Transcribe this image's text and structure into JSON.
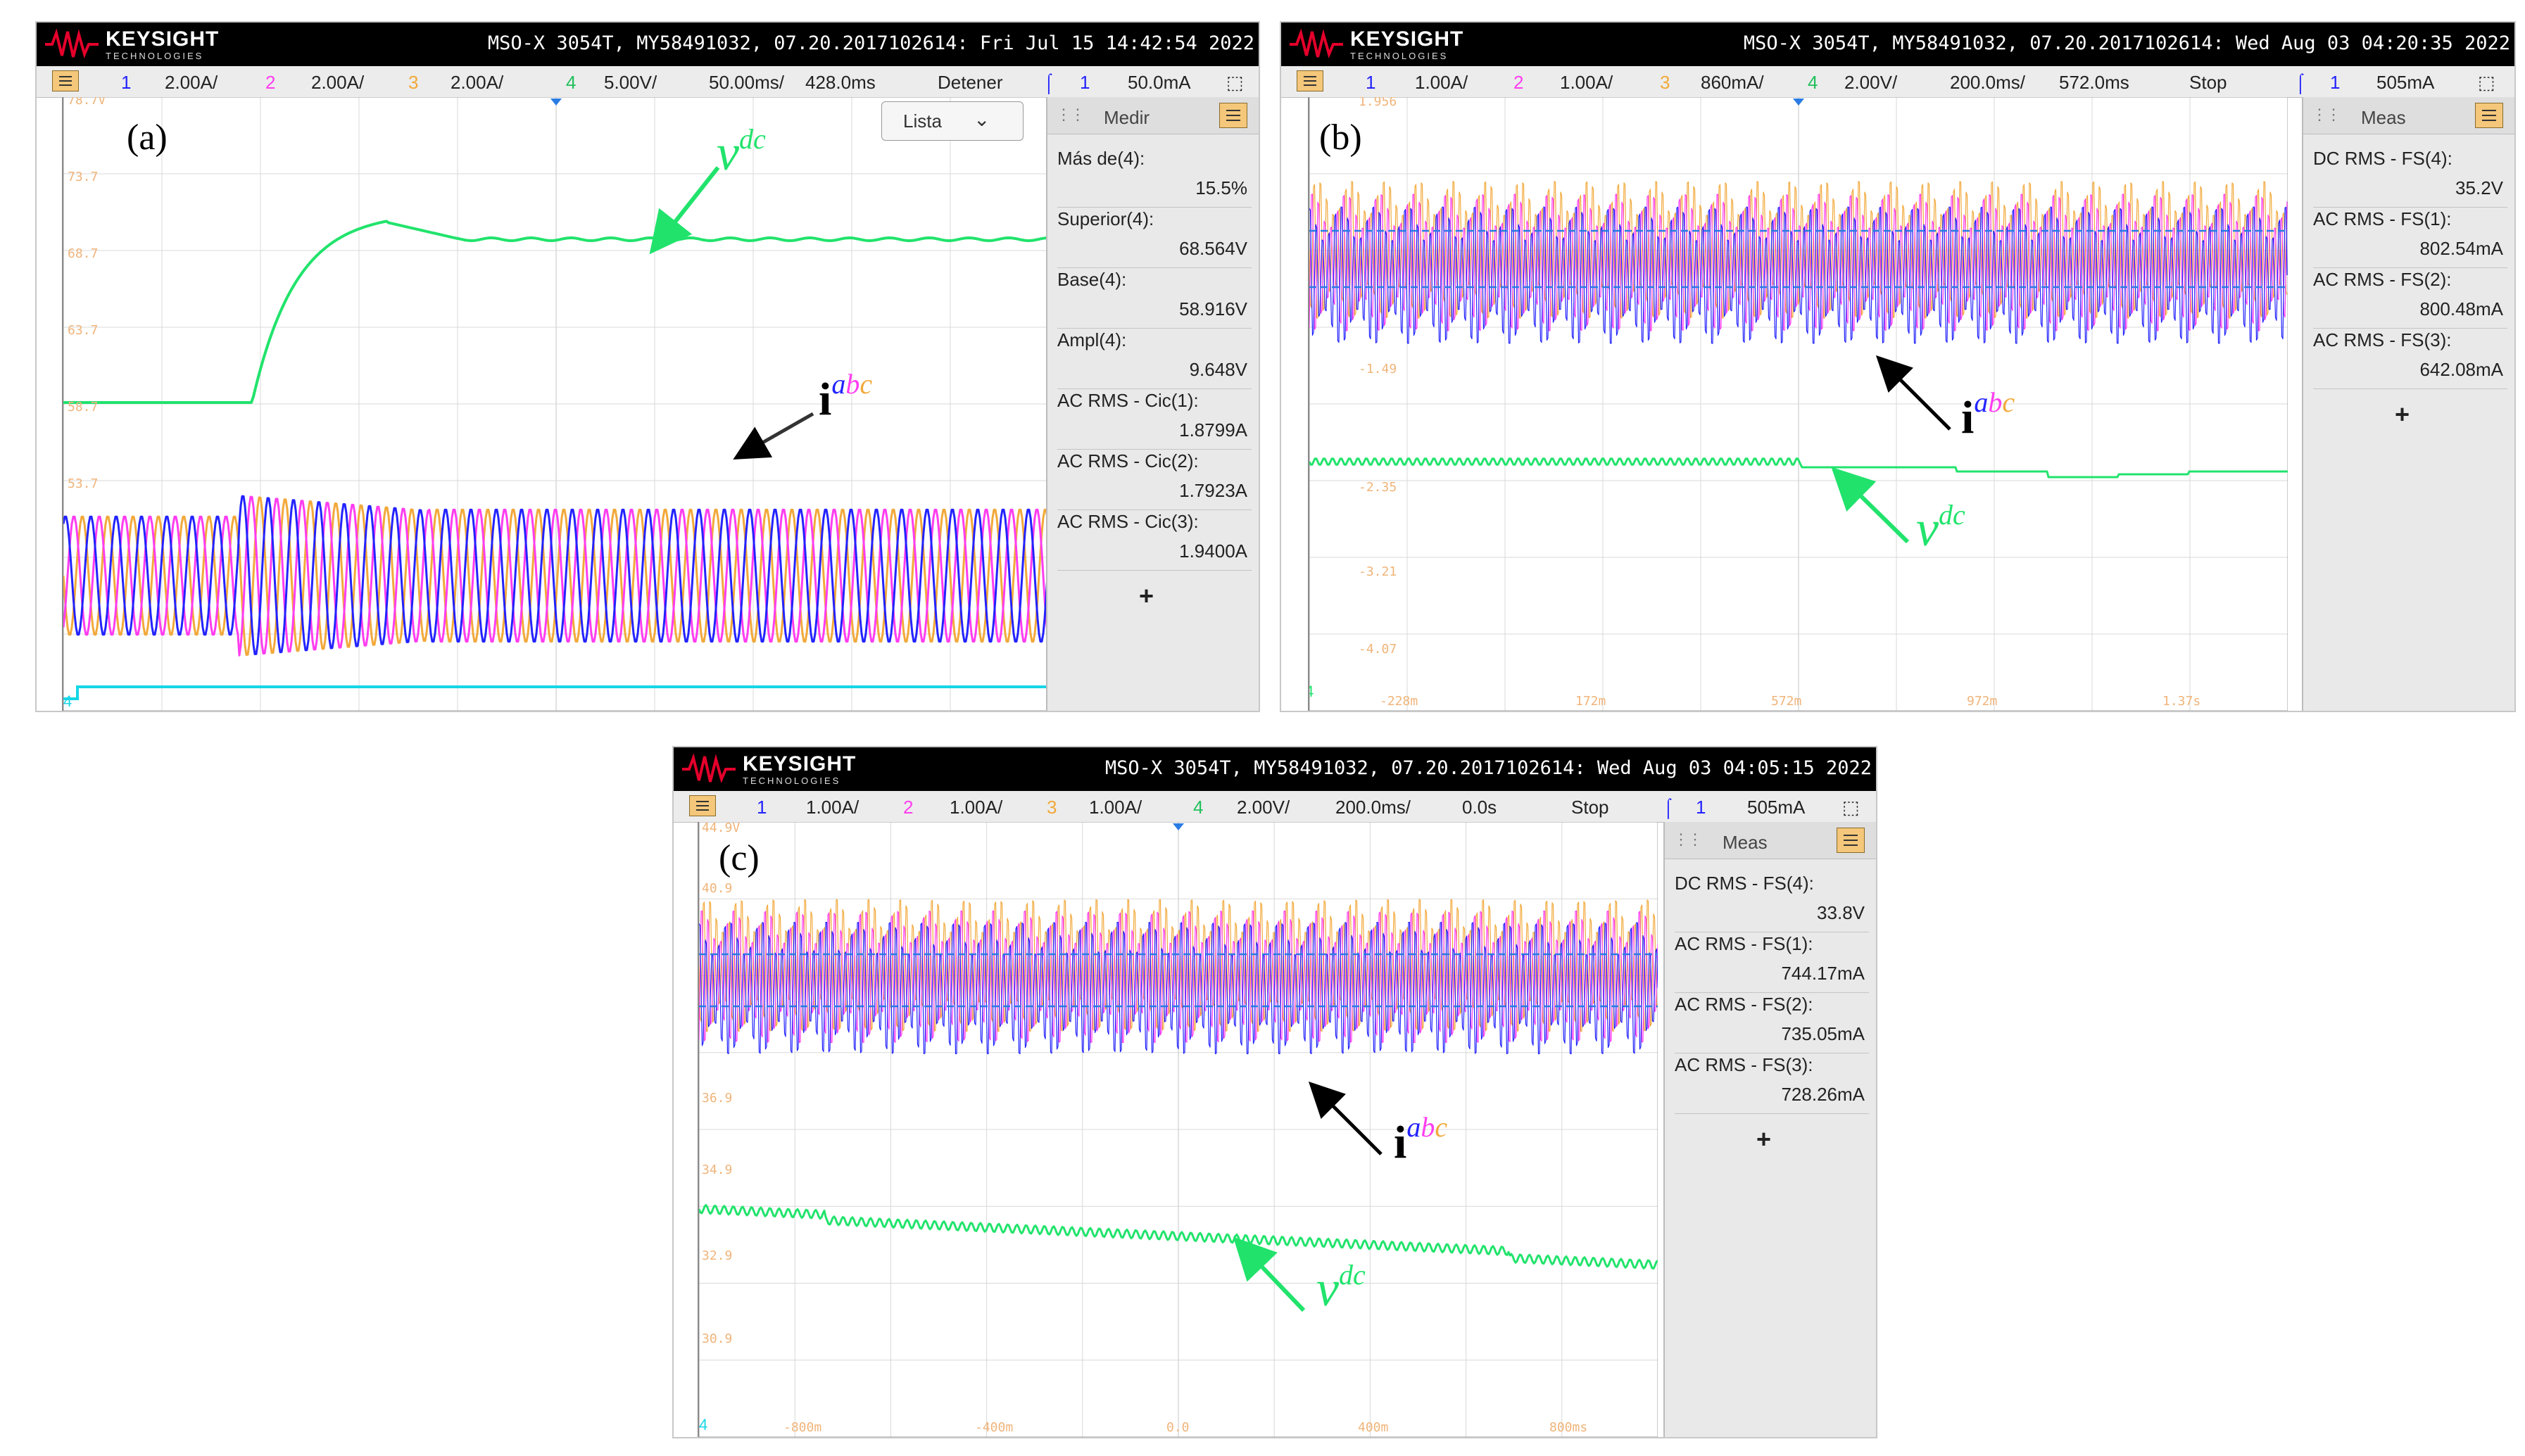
{
  "colors": {
    "ch1": "#2323ff",
    "ch2": "#ff3df0",
    "ch3": "#f2a93b",
    "ch4": "#21e36c",
    "trace_cyan": "#16d6e6",
    "header_bg": "#000000",
    "menu_btn": "#f4c77a"
  },
  "logo": {
    "main": "KEYSIGHT",
    "sub": "TECHNOLOGIES"
  },
  "panel_a": {
    "label": "(a)",
    "header_info": "MSO-X 3054T, MY58491032, 07.20.2017102614: Fri Jul 15 14:42:54 2022",
    "channels": [
      {
        "num": "1",
        "scale": "2.00A/"
      },
      {
        "num": "2",
        "scale": "2.00A/"
      },
      {
        "num": "3",
        "scale": "2.00A/"
      },
      {
        "num": "4",
        "scale": "5.00V/"
      }
    ],
    "timebase": "50.00ms/",
    "delay": "428.0ms",
    "run_state": "Detener",
    "trig_ch": "1",
    "trig_level": "50.0mA",
    "lista": "Lista",
    "meas_title": "Medir",
    "measurements": [
      {
        "name": "Más de(4):",
        "value": "15.5%"
      },
      {
        "name": "Superior(4):",
        "value": "68.564V"
      },
      {
        "name": "Base(4):",
        "value": "58.916V"
      },
      {
        "name": "Ampl(4):",
        "value": "9.648V"
      },
      {
        "name": "AC RMS - Cic(1):",
        "value": "1.8799A"
      },
      {
        "name": "AC RMS - Cic(2):",
        "value": "1.7923A"
      },
      {
        "name": "AC RMS - Cic(3):",
        "value": "1.9400A"
      }
    ],
    "add": "+",
    "vdc_label": "v",
    "vdc_sup": "dc",
    "iabc_label": "i",
    "iabc_sup": "abc",
    "y_ticks": [
      "78.7V",
      "73.7",
      "68.7",
      "63.7",
      "58.7",
      "53.7"
    ],
    "ch4_marker": "4"
  },
  "panel_b": {
    "label": "(b)",
    "header_info": "MSO-X 3054T, MY58491032, 07.20.2017102614: Wed Aug 03 04:20:35 2022",
    "channels": [
      {
        "num": "1",
        "scale": "1.00A/"
      },
      {
        "num": "2",
        "scale": "1.00A/"
      },
      {
        "num": "3",
        "scale": "860mA/"
      },
      {
        "num": "4",
        "scale": "2.00V/"
      }
    ],
    "timebase": "200.0ms/",
    "delay": "572.0ms",
    "run_state": "Stop",
    "trig_ch": "1",
    "trig_level": "505mA",
    "meas_title": "Meas",
    "measurements": [
      {
        "name": "DC RMS - FS(4):",
        "value": "35.2V"
      },
      {
        "name": "AC RMS - FS(1):",
        "value": "802.54mA"
      },
      {
        "name": "AC RMS - FS(2):",
        "value": "800.48mA"
      },
      {
        "name": "AC RMS - FS(3):",
        "value": "642.08mA"
      }
    ],
    "add": "+",
    "vdc_label": "v",
    "vdc_sup": "dc",
    "iabc_label": "i",
    "iabc_sup": "abc",
    "y_ticks": [
      "1.956",
      "-1.49",
      "-2.35",
      "-3.21",
      "-4.07"
    ],
    "x_ticks": [
      "-228m",
      "172m",
      "572m",
      "972m",
      "1.37s"
    ],
    "ch4_marker": "4"
  },
  "panel_c": {
    "label": "(c)",
    "header_info": "MSO-X 3054T, MY58491032, 07.20.2017102614: Wed Aug 03 04:05:15 2022",
    "channels": [
      {
        "num": "1",
        "scale": "1.00A/"
      },
      {
        "num": "2",
        "scale": "1.00A/"
      },
      {
        "num": "3",
        "scale": "1.00A/"
      },
      {
        "num": "4",
        "scale": "2.00V/"
      }
    ],
    "timebase": "200.0ms/",
    "delay": "0.0s",
    "run_state": "Stop",
    "trig_ch": "1",
    "trig_level": "505mA",
    "meas_title": "Meas",
    "measurements": [
      {
        "name": "DC RMS - FS(4):",
        "value": "33.8V"
      },
      {
        "name": "AC RMS - FS(1):",
        "value": "744.17mA"
      },
      {
        "name": "AC RMS - FS(2):",
        "value": "735.05mA"
      },
      {
        "name": "AC RMS - FS(3):",
        "value": "728.26mA"
      }
    ],
    "add": "+",
    "vdc_label": "v",
    "vdc_sup": "dc",
    "iabc_label": "i",
    "iabc_sup": "abc",
    "y_ticks": [
      "44.9V",
      "40.9",
      "36.9",
      "34.9",
      "32.9",
      "30.9"
    ],
    "x_ticks": [
      "-800m",
      "-400m",
      "0.0",
      "400m",
      "800ms"
    ],
    "ch4_marker": "4"
  }
}
